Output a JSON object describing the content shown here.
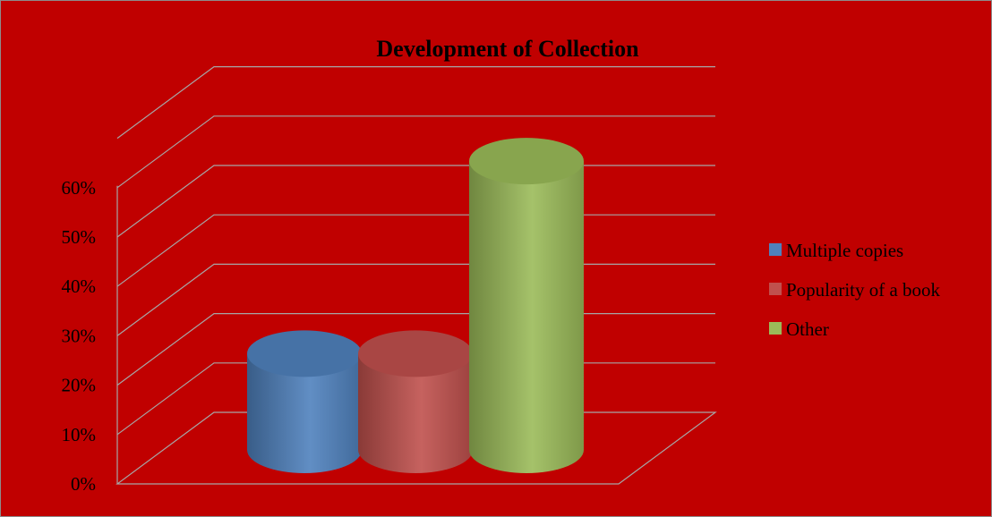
{
  "chart_data": {
    "type": "bar",
    "style": "3d-cylinder",
    "title": "Development of Collection",
    "xlabel": "",
    "ylabel": "",
    "categories": [
      "Multiple copies",
      "Popularity of a book",
      "Other"
    ],
    "values": [
      20,
      20,
      60
    ],
    "ylim": [
      0,
      70
    ],
    "yticks": [
      "0%",
      "10%",
      "20%",
      "30%",
      "40%",
      "50%",
      "60%"
    ],
    "grid": true,
    "legend": "right",
    "colors": [
      "#4f81bd",
      "#c0504d",
      "#9bbb59"
    ],
    "background": "#c00000"
  }
}
